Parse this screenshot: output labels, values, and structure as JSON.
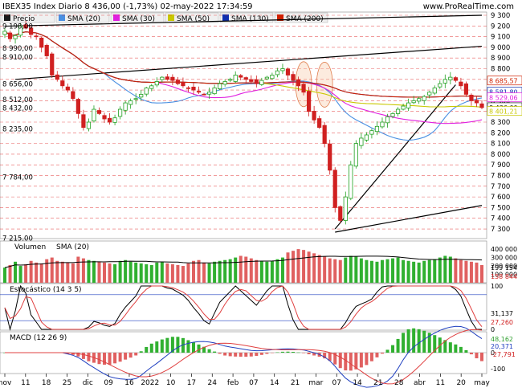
{
  "header": {
    "title": "IBEX35 Index Diario 8 436,00 (-1,73%) 02-may-2022 17:34:59",
    "site": "www.ProRealTime.com"
  },
  "legend": [
    {
      "label": "Precio",
      "color": "#1a1a1a"
    },
    {
      "label": "SMA (20)",
      "color": "#4a90e2"
    },
    {
      "label": "SMA (30)",
      "color": "#e020e0"
    },
    {
      "label": "SMA (50)",
      "color": "#c8c800"
    },
    {
      "label": "SMA (130)",
      "color": "#1030b0"
    },
    {
      "label": "SMA (200)",
      "color": "#d02000"
    }
  ],
  "chart_data": [
    {
      "type": "candlestick",
      "title": "IBEX35 Index Diario",
      "y_ticks": [
        7300,
        7400,
        7500,
        7600,
        7700,
        7800,
        7900,
        8000,
        8100,
        8200,
        8300,
        8400,
        8500,
        8600,
        8700,
        8800,
        8900,
        9000,
        9100,
        9200,
        9300
      ],
      "ylim": [
        7210,
        9330
      ],
      "left_labels": [
        "9 198,00",
        "8 990,00",
        "8 910,00",
        "8 656,00",
        "8 512,00",
        "8 432,00",
        "8 235,00",
        "7 784,00",
        "7 215,00"
      ],
      "right_value_labels": [
        {
          "text": "8 685,57",
          "color": "#d02000"
        },
        {
          "text": "8 581,80",
          "color": "#1030b0"
        },
        {
          "text": "8 529,06",
          "color": "#e020e0"
        },
        {
          "text": "8 436,00",
          "color": "#1a1a1a"
        },
        {
          "text": "8 401,21",
          "color": "#c8c800"
        }
      ],
      "x_ticks": [
        "nov",
        "11",
        "18",
        "25",
        "dic",
        "09",
        "16",
        "2022",
        "10",
        "17",
        "24",
        "feb",
        "07",
        "14",
        "21",
        "mar",
        "07",
        "14",
        "21",
        "28",
        "abr",
        "11",
        "20",
        "may"
      ],
      "closes": [
        9150,
        9080,
        9110,
        9200,
        9180,
        9120,
        9100,
        9000,
        8920,
        8740,
        8700,
        8640,
        8600,
        8520,
        8380,
        8250,
        8300,
        8420,
        8380,
        8330,
        8300,
        8340,
        8420,
        8480,
        8500,
        8520,
        8560,
        8620,
        8640,
        8680,
        8720,
        8700,
        8690,
        8660,
        8640,
        8620,
        8600,
        8580,
        8560,
        8580,
        8620,
        8660,
        8680,
        8700,
        8740,
        8720,
        8700,
        8680,
        8660,
        8690,
        8720,
        8740,
        8780,
        8800,
        8740,
        8690,
        8640,
        8580,
        8400,
        8320,
        8250,
        8100,
        7850,
        7500,
        7380,
        7600,
        7900,
        8100,
        8150,
        8180,
        8220,
        8260,
        8300,
        8350,
        8380,
        8420,
        8450,
        8480,
        8500,
        8520,
        8540,
        8580,
        8620,
        8660,
        8700,
        8720,
        8690,
        8640,
        8560,
        8500,
        8480,
        8436
      ],
      "volume": {
        "title": "Volumen",
        "sma_label": "SMA (20)",
        "ticks": [
          100000,
          200000,
          300000,
          400000
        ],
        "values": [
          180,
          210,
          250,
          200,
          220,
          260,
          240,
          230,
          280,
          300,
          260,
          250,
          240,
          230,
          310,
          290,
          270,
          260,
          250,
          240,
          230,
          220,
          260,
          270,
          250,
          240,
          230,
          220,
          210,
          240,
          250,
          230,
          220,
          210,
          200,
          230,
          260,
          270,
          240,
          230,
          250,
          260,
          270,
          280,
          300,
          320,
          310,
          290,
          270,
          260,
          250,
          260,
          280,
          300,
          360,
          380,
          400,
          390,
          370,
          350,
          330,
          310,
          290,
          280,
          270,
          300,
          320,
          310,
          290,
          270,
          260,
          250,
          270,
          280,
          290,
          300,
          270,
          260,
          250,
          240,
          260,
          270,
          280,
          300,
          320,
          310,
          290,
          270,
          260,
          250,
          240,
          210
        ],
        "sma_value": "199 154",
        "color_value": "158 844"
      },
      "stochastic": {
        "title": "Estocástico (14 3 5)",
        "ticks": [
          0,
          100
        ],
        "values": [
          "31,137",
          "27,260"
        ]
      },
      "macd": {
        "title": "MACD (12 26 9)",
        "ticks": [
          0,
          -100
        ],
        "values": [
          "48,162",
          "20,371",
          "-27,791"
        ]
      }
    }
  ]
}
